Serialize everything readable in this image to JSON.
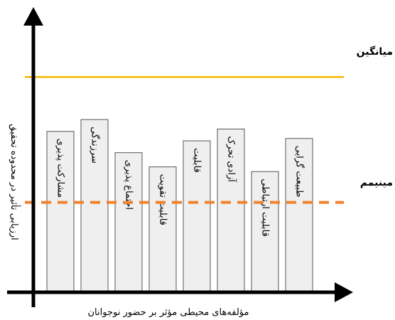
{
  "chart_data": {
    "type": "bar",
    "title": "",
    "xlabel": "مؤلفه‌های محیطی مؤثر بر حضور نوجوانان",
    "ylabel": "ارزیابی تأثیر در محدوده تحقیق",
    "categories": [
      "مشارکت پذیری",
      "سرزندگی",
      "اجتماع پذیری",
      "قابلیت تقویت",
      "قابلیت",
      "آزادی تحرک",
      "قابلیت ارتباطی",
      "طبیعت گرایی"
    ],
    "values": [
      68,
      73,
      59,
      53,
      64,
      69,
      51,
      65
    ],
    "reference_lines": [
      {
        "label": "میانگین",
        "value": 91,
        "color": "#f5b400",
        "style": "solid"
      },
      {
        "label": "مینیمم",
        "value": 38,
        "color": "#f08232",
        "style": "dashed"
      }
    ],
    "ylim": [
      0,
      110
    ],
    "grid": false,
    "colors": {
      "bar_fill": "#efefef",
      "bar_stroke": "#555555",
      "axis": "#000000"
    }
  }
}
